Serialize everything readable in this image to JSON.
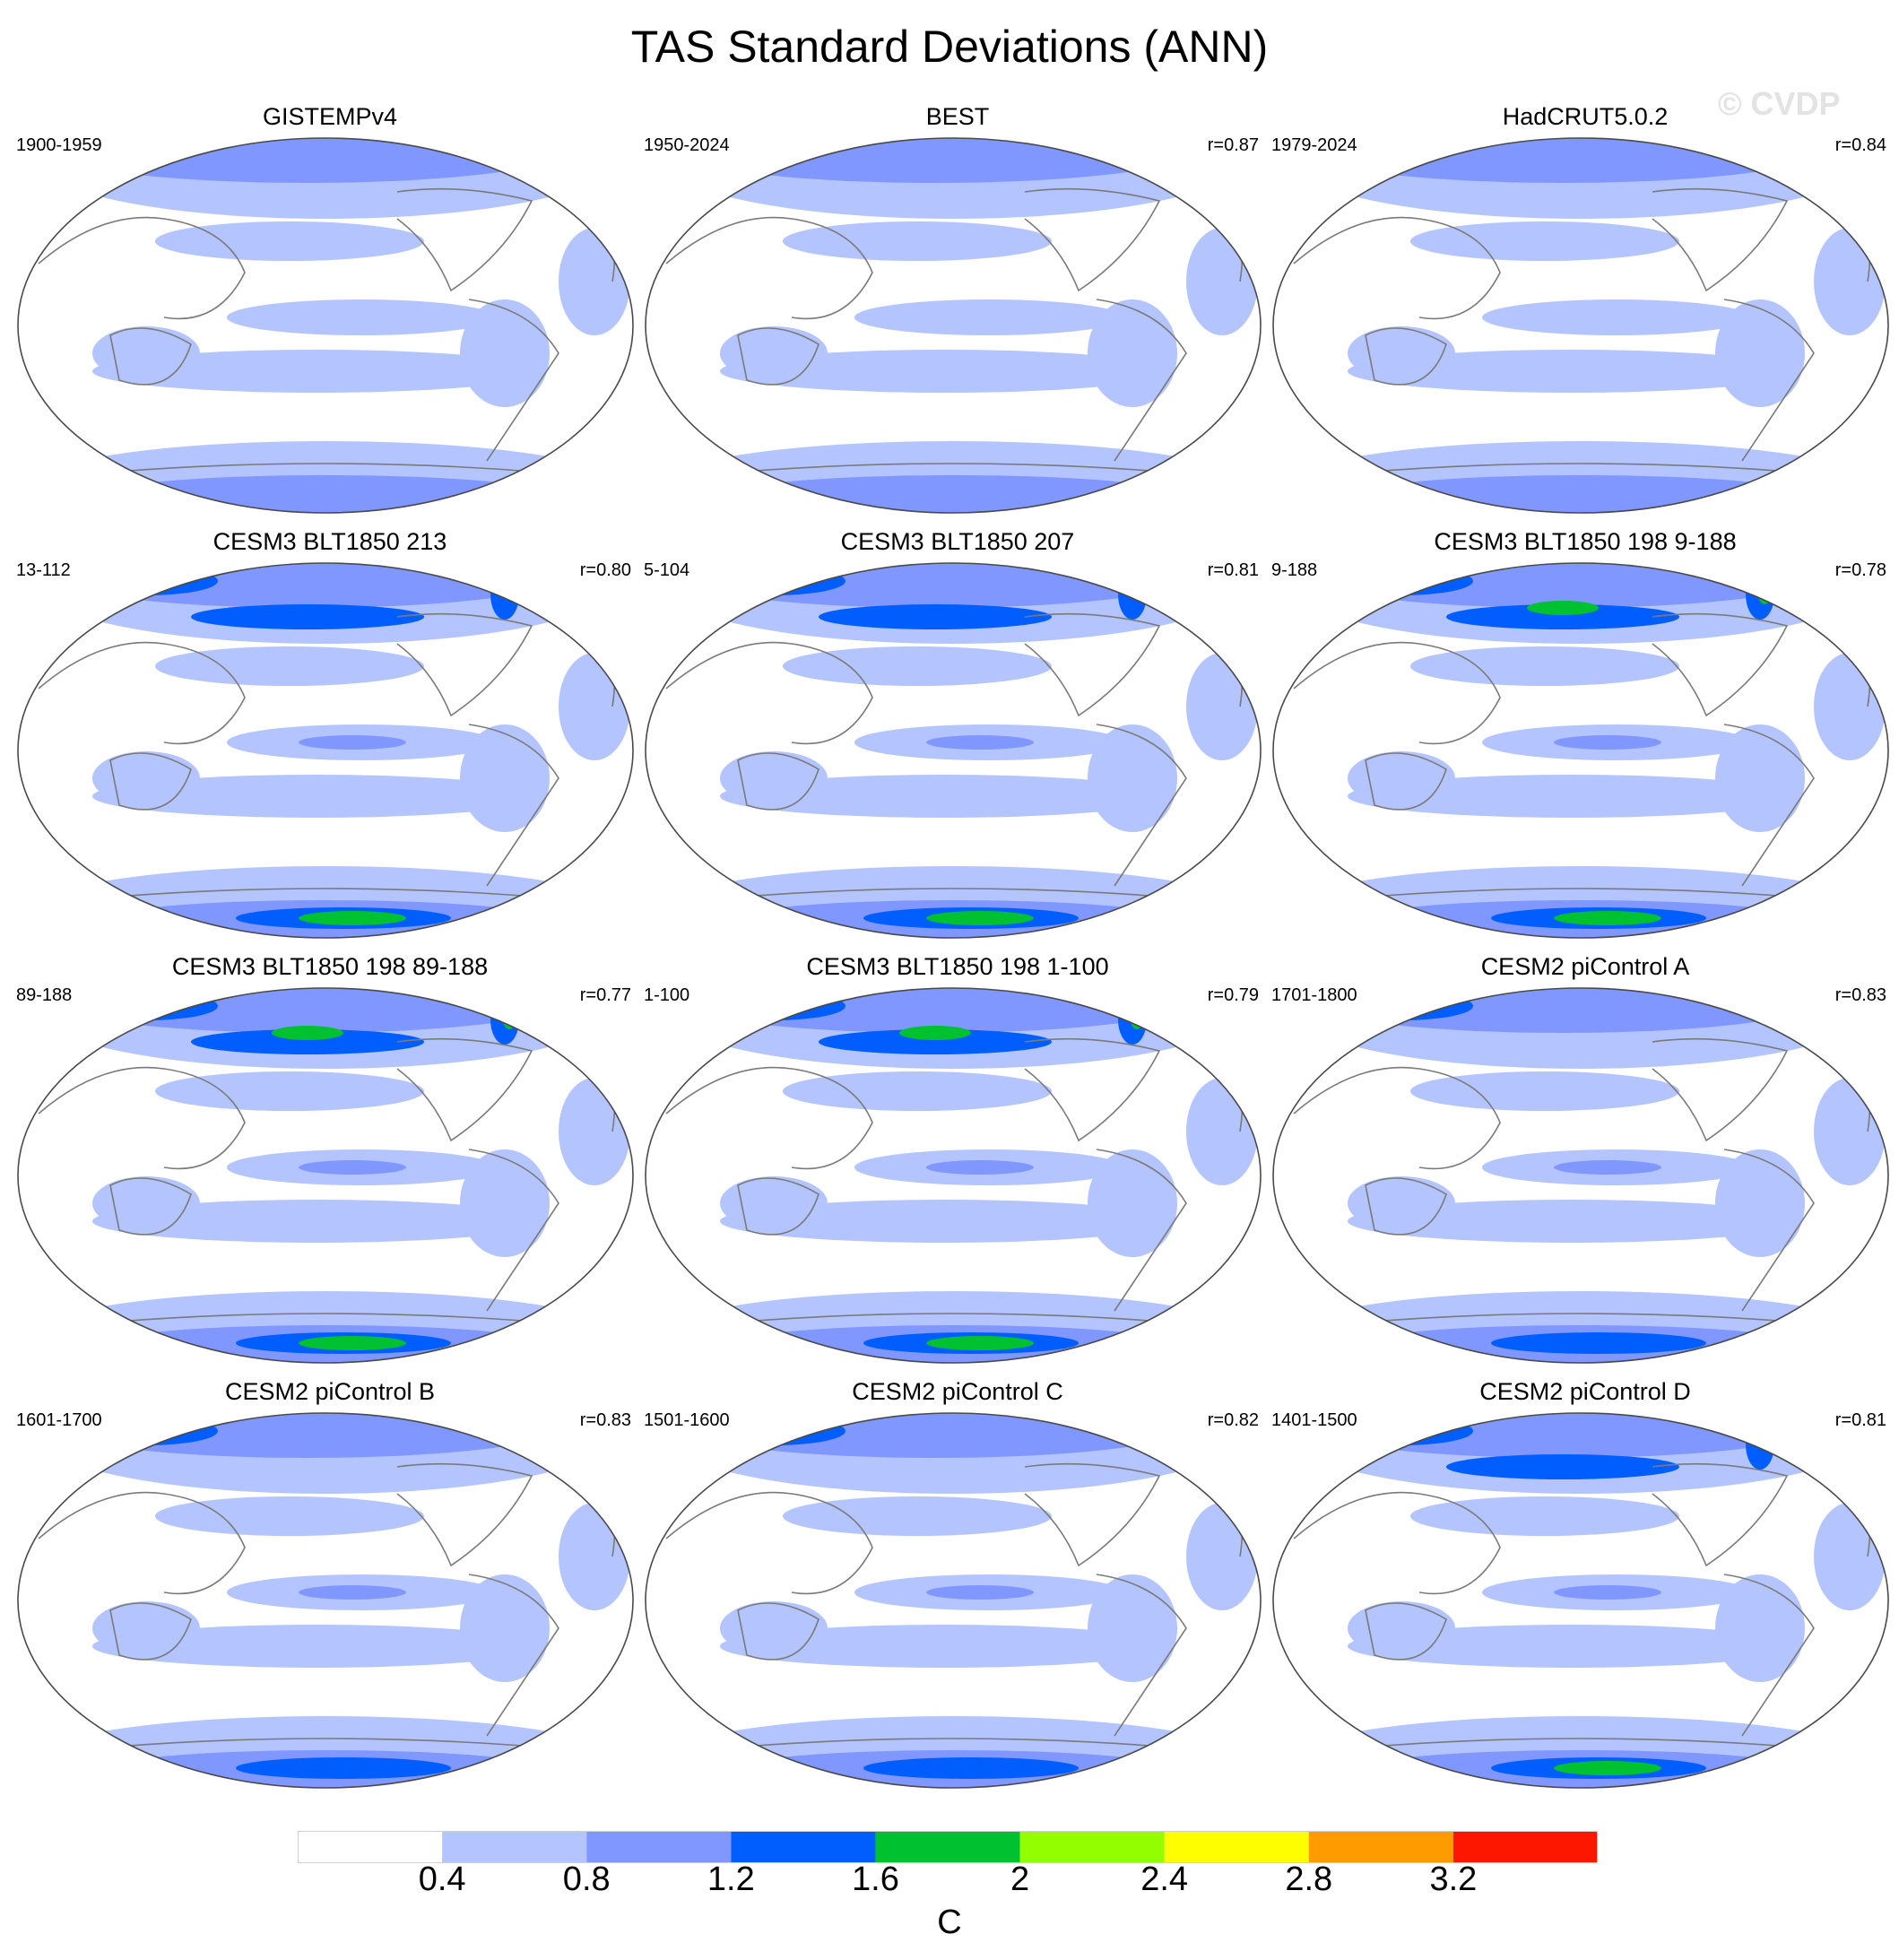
{
  "figure": {
    "title": "TAS Standard Deviations (ANN)",
    "watermark": "© CVDP",
    "colorbar_unit": "C"
  },
  "colors": {
    "land_outline": "#7a7a7a",
    "map_border": "#4a4a4a"
  },
  "legend": {
    "levels": [
      "0.4",
      "0.8",
      "1.2",
      "1.6",
      "2",
      "2.4",
      "2.8",
      "3.2"
    ],
    "bin_colors": [
      "#ffffff",
      "#b3c4fe",
      "#7f97fe",
      "#005efe",
      "#00c12f",
      "#93fe00",
      "#fefe00",
      "#fe9b00",
      "#fe1700"
    ]
  },
  "panels": [
    {
      "title": "GISTEMPv4",
      "period": "1900-1959",
      "r": "",
      "intensity": 0
    },
    {
      "title": "BEST",
      "period": "1950-2024",
      "r": "r=0.87",
      "intensity": 0
    },
    {
      "title": "HadCRUT5.0.2",
      "period": "1979-2024",
      "r": "r=0.84",
      "intensity": 0
    },
    {
      "title": "CESM3 BLT1850 213",
      "period": "13-112",
      "r": "r=0.80",
      "intensity": 2
    },
    {
      "title": "CESM3 BLT1850 207",
      "period": "5-104",
      "r": "r=0.81",
      "intensity": 2
    },
    {
      "title": "CESM3 BLT1850 198 9-188",
      "period": "9-188",
      "r": "r=0.78",
      "intensity": 3
    },
    {
      "title": "CESM3 BLT1850 198 89-188",
      "period": "89-188",
      "r": "r=0.77",
      "intensity": 3
    },
    {
      "title": "CESM3 BLT1850 198 1-100",
      "period": "1-100",
      "r": "r=0.79",
      "intensity": 3
    },
    {
      "title": "CESM2 piControl A",
      "period": "1701-1800",
      "r": "r=0.83",
      "intensity": 1
    },
    {
      "title": "CESM2 piControl B",
      "period": "1601-1700",
      "r": "r=0.83",
      "intensity": 1
    },
    {
      "title": "CESM2 piControl C",
      "period": "1501-1600",
      "r": "r=0.82",
      "intensity": 1
    },
    {
      "title": "CESM2 piControl D",
      "period": "1401-1500",
      "r": "r=0.81",
      "intensity": 2
    }
  ]
}
